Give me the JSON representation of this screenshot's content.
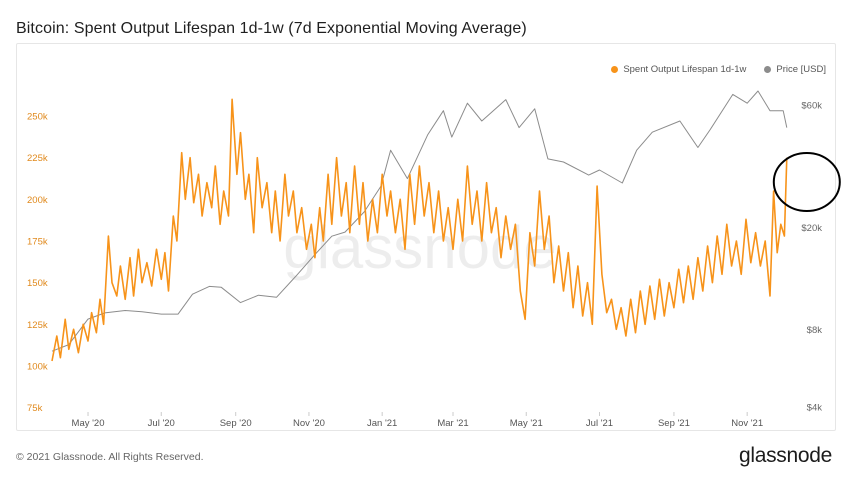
{
  "page": {
    "title": "Bitcoin: Spent Output Lifespan 1d-1w (7d Exponential Moving Average)",
    "footer_copyright": "© 2021 Glassnode. All Rights Reserved.",
    "footer_logo": "glassnode",
    "watermark": "glassnode"
  },
  "colors": {
    "sol_series": "#f7931a",
    "price_series": "#8c8c8c",
    "left_axis_text": "#e0891c",
    "right_axis_text": "#666666",
    "annotation_circle": "#000000"
  },
  "chart_data": {
    "type": "line",
    "title": "Bitcoin: Spent Output Lifespan 1d-1w (7d Exponential Moving Average)",
    "legend_position": "top-right",
    "grid": false,
    "x_tick_labels": [
      "May '20",
      "Jul '20",
      "Sep '20",
      "Nov '20",
      "Jan '21",
      "Mar '21",
      "May '21",
      "Jul '21",
      "Sep '21",
      "Nov '21"
    ],
    "x_range": [
      "2020-04-01",
      "2021-12-10"
    ],
    "y_left": {
      "label": "",
      "ticks": [
        "75k",
        "100k",
        "125k",
        "150k",
        "175k",
        "200k",
        "225k",
        "250k"
      ],
      "range": [
        75000,
        262000
      ]
    },
    "y_right": {
      "label": "",
      "scale": "log",
      "ticks": [
        "$4k",
        "$8k",
        "$20k",
        "$60k"
      ],
      "range": [
        4000,
        80000
      ]
    },
    "series": [
      {
        "name": "Spent Output Lifespan 1d-1w",
        "axis": "left",
        "color": "#f7931a",
        "points": [
          [
            "2020-04-01",
            103000
          ],
          [
            "2020-04-05",
            118000
          ],
          [
            "2020-04-08",
            105000
          ],
          [
            "2020-04-12",
            128000
          ],
          [
            "2020-04-15",
            110000
          ],
          [
            "2020-04-19",
            122000
          ],
          [
            "2020-04-23",
            108000
          ],
          [
            "2020-04-27",
            125000
          ],
          [
            "2020-05-01",
            115000
          ],
          [
            "2020-05-04",
            132000
          ],
          [
            "2020-05-08",
            120000
          ],
          [
            "2020-05-11",
            140000
          ],
          [
            "2020-05-14",
            125000
          ],
          [
            "2020-05-18",
            178000
          ],
          [
            "2020-05-21",
            150000
          ],
          [
            "2020-05-25",
            142000
          ],
          [
            "2020-05-28",
            160000
          ],
          [
            "2020-06-01",
            140000
          ],
          [
            "2020-06-05",
            165000
          ],
          [
            "2020-06-08",
            142000
          ],
          [
            "2020-06-12",
            170000
          ],
          [
            "2020-06-15",
            150000
          ],
          [
            "2020-06-19",
            162000
          ],
          [
            "2020-06-23",
            148000
          ],
          [
            "2020-06-27",
            170000
          ],
          [
            "2020-07-01",
            152000
          ],
          [
            "2020-07-04",
            168000
          ],
          [
            "2020-07-07",
            145000
          ],
          [
            "2020-07-11",
            190000
          ],
          [
            "2020-07-14",
            175000
          ],
          [
            "2020-07-18",
            228000
          ],
          [
            "2020-07-21",
            200000
          ],
          [
            "2020-07-25",
            225000
          ],
          [
            "2020-07-28",
            198000
          ],
          [
            "2020-08-01",
            215000
          ],
          [
            "2020-08-04",
            190000
          ],
          [
            "2020-08-08",
            210000
          ],
          [
            "2020-08-12",
            195000
          ],
          [
            "2020-08-15",
            220000
          ],
          [
            "2020-08-19",
            185000
          ],
          [
            "2020-08-22",
            205000
          ],
          [
            "2020-08-26",
            190000
          ],
          [
            "2020-08-29",
            260000
          ],
          [
            "2020-09-02",
            215000
          ],
          [
            "2020-09-05",
            240000
          ],
          [
            "2020-09-09",
            200000
          ],
          [
            "2020-09-12",
            215000
          ],
          [
            "2020-09-16",
            180000
          ],
          [
            "2020-09-19",
            225000
          ],
          [
            "2020-09-23",
            195000
          ],
          [
            "2020-09-27",
            210000
          ],
          [
            "2020-10-01",
            180000
          ],
          [
            "2020-10-04",
            205000
          ],
          [
            "2020-10-08",
            175000
          ],
          [
            "2020-10-12",
            215000
          ],
          [
            "2020-10-15",
            190000
          ],
          [
            "2020-10-19",
            205000
          ],
          [
            "2020-10-22",
            180000
          ],
          [
            "2020-10-26",
            195000
          ],
          [
            "2020-10-30",
            170000
          ],
          [
            "2020-11-03",
            185000
          ],
          [
            "2020-11-06",
            165000
          ],
          [
            "2020-11-10",
            195000
          ],
          [
            "2020-11-13",
            175000
          ],
          [
            "2020-11-17",
            215000
          ],
          [
            "2020-11-20",
            185000
          ],
          [
            "2020-11-24",
            225000
          ],
          [
            "2020-11-28",
            190000
          ],
          [
            "2020-12-02",
            210000
          ],
          [
            "2020-12-05",
            180000
          ],
          [
            "2020-12-09",
            220000
          ],
          [
            "2020-12-13",
            185000
          ],
          [
            "2020-12-16",
            210000
          ],
          [
            "2020-12-20",
            175000
          ],
          [
            "2020-12-24",
            200000
          ],
          [
            "2020-12-28",
            180000
          ],
          [
            "2021-01-01",
            215000
          ],
          [
            "2021-01-05",
            190000
          ],
          [
            "2021-01-08",
            205000
          ],
          [
            "2021-01-12",
            180000
          ],
          [
            "2021-01-16",
            200000
          ],
          [
            "2021-01-20",
            170000
          ],
          [
            "2021-01-24",
            215000
          ],
          [
            "2021-01-28",
            185000
          ],
          [
            "2021-02-01",
            220000
          ],
          [
            "2021-02-05",
            190000
          ],
          [
            "2021-02-09",
            210000
          ],
          [
            "2021-02-13",
            180000
          ],
          [
            "2021-02-17",
            205000
          ],
          [
            "2021-02-21",
            175000
          ],
          [
            "2021-02-25",
            195000
          ],
          [
            "2021-03-01",
            170000
          ],
          [
            "2021-03-05",
            200000
          ],
          [
            "2021-03-09",
            175000
          ],
          [
            "2021-03-13",
            220000
          ],
          [
            "2021-03-17",
            185000
          ],
          [
            "2021-03-21",
            205000
          ],
          [
            "2021-03-25",
            175000
          ],
          [
            "2021-03-29",
            210000
          ],
          [
            "2021-04-02",
            180000
          ],
          [
            "2021-04-06",
            195000
          ],
          [
            "2021-04-10",
            165000
          ],
          [
            "2021-04-14",
            190000
          ],
          [
            "2021-04-18",
            170000
          ],
          [
            "2021-04-22",
            185000
          ],
          [
            "2021-04-26",
            145000
          ],
          [
            "2021-04-30",
            128000
          ],
          [
            "2021-05-04",
            180000
          ],
          [
            "2021-05-08",
            160000
          ],
          [
            "2021-05-12",
            205000
          ],
          [
            "2021-05-16",
            170000
          ],
          [
            "2021-05-20",
            190000
          ],
          [
            "2021-05-24",
            150000
          ],
          [
            "2021-05-28",
            172000
          ],
          [
            "2021-06-01",
            145000
          ],
          [
            "2021-06-05",
            168000
          ],
          [
            "2021-06-09",
            135000
          ],
          [
            "2021-06-13",
            160000
          ],
          [
            "2021-06-17",
            130000
          ],
          [
            "2021-06-21",
            150000
          ],
          [
            "2021-06-25",
            125000
          ],
          [
            "2021-06-29",
            208000
          ],
          [
            "2021-07-03",
            155000
          ],
          [
            "2021-07-07",
            132000
          ],
          [
            "2021-07-11",
            140000
          ],
          [
            "2021-07-15",
            122000
          ],
          [
            "2021-07-19",
            135000
          ],
          [
            "2021-07-23",
            118000
          ],
          [
            "2021-07-27",
            140000
          ],
          [
            "2021-07-31",
            120000
          ],
          [
            "2021-08-04",
            145000
          ],
          [
            "2021-08-08",
            125000
          ],
          [
            "2021-08-12",
            148000
          ],
          [
            "2021-08-16",
            128000
          ],
          [
            "2021-08-20",
            152000
          ],
          [
            "2021-08-24",
            130000
          ],
          [
            "2021-08-28",
            150000
          ],
          [
            "2021-09-01",
            135000
          ],
          [
            "2021-09-05",
            158000
          ],
          [
            "2021-09-09",
            138000
          ],
          [
            "2021-09-13",
            160000
          ],
          [
            "2021-09-17",
            140000
          ],
          [
            "2021-09-21",
            165000
          ],
          [
            "2021-09-25",
            145000
          ],
          [
            "2021-09-29",
            172000
          ],
          [
            "2021-10-03",
            150000
          ],
          [
            "2021-10-07",
            178000
          ],
          [
            "2021-10-11",
            155000
          ],
          [
            "2021-10-15",
            185000
          ],
          [
            "2021-10-19",
            160000
          ],
          [
            "2021-10-23",
            175000
          ],
          [
            "2021-10-27",
            155000
          ],
          [
            "2021-10-31",
            188000
          ],
          [
            "2021-11-04",
            162000
          ],
          [
            "2021-11-08",
            180000
          ],
          [
            "2021-11-12",
            160000
          ],
          [
            "2021-11-16",
            175000
          ],
          [
            "2021-11-20",
            142000
          ],
          [
            "2021-11-23",
            205000
          ],
          [
            "2021-11-26",
            168000
          ],
          [
            "2021-11-29",
            185000
          ],
          [
            "2021-12-02",
            178000
          ],
          [
            "2021-12-04",
            225000
          ]
        ]
      },
      {
        "name": "Price [USD]",
        "axis": "right",
        "color": "#8c8c8c",
        "points": [
          [
            "2020-04-01",
            6600
          ],
          [
            "2020-04-15",
            7000
          ],
          [
            "2020-05-01",
            8800
          ],
          [
            "2020-05-15",
            9300
          ],
          [
            "2020-06-01",
            9500
          ],
          [
            "2020-06-15",
            9400
          ],
          [
            "2020-07-01",
            9200
          ],
          [
            "2020-07-15",
            9200
          ],
          [
            "2020-07-27",
            11000
          ],
          [
            "2020-08-10",
            11800
          ],
          [
            "2020-08-20",
            11700
          ],
          [
            "2020-09-05",
            10200
          ],
          [
            "2020-09-20",
            10900
          ],
          [
            "2020-10-05",
            10700
          ],
          [
            "2020-10-21",
            12900
          ],
          [
            "2020-11-05",
            15500
          ],
          [
            "2020-11-20",
            18500
          ],
          [
            "2020-12-01",
            19200
          ],
          [
            "2020-12-17",
            23000
          ],
          [
            "2020-12-31",
            29000
          ],
          [
            "2021-01-08",
            40000
          ],
          [
            "2021-01-22",
            31000
          ],
          [
            "2021-02-08",
            46000
          ],
          [
            "2021-02-21",
            57000
          ],
          [
            "2021-02-28",
            45000
          ],
          [
            "2021-03-13",
            61000
          ],
          [
            "2021-03-25",
            52000
          ],
          [
            "2021-04-14",
            63000
          ],
          [
            "2021-04-25",
            49000
          ],
          [
            "2021-05-08",
            58000
          ],
          [
            "2021-05-19",
            37000
          ],
          [
            "2021-06-01",
            36000
          ],
          [
            "2021-06-22",
            32000
          ],
          [
            "2021-07-01",
            33500
          ],
          [
            "2021-07-20",
            29800
          ],
          [
            "2021-08-01",
            40000
          ],
          [
            "2021-08-14",
            47000
          ],
          [
            "2021-09-06",
            52000
          ],
          [
            "2021-09-21",
            41000
          ],
          [
            "2021-10-01",
            48000
          ],
          [
            "2021-10-20",
            66000
          ],
          [
            "2021-11-01",
            61000
          ],
          [
            "2021-11-10",
            68000
          ],
          [
            "2021-11-20",
            57000
          ],
          [
            "2021-12-01",
            57000
          ],
          [
            "2021-12-04",
            49000
          ]
        ]
      }
    ],
    "annotation": {
      "type": "ellipse",
      "around": "last SOL spike (~225k, early Dec '21)"
    }
  }
}
